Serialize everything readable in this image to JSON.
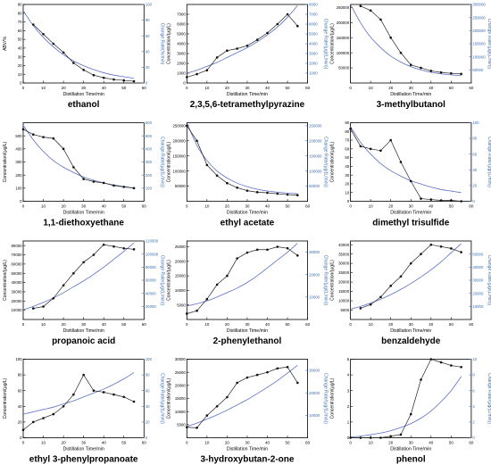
{
  "figure": {
    "shared_xlabel": "Distillation Time/min"
  },
  "chart_data": [
    {
      "type": "line",
      "name": "ethanol",
      "ylabel": "ABV/%",
      "y2label": "Change Rate(%/min)",
      "xlim": [
        0,
        60
      ],
      "ylim": [
        0,
        90
      ],
      "y2lim": [
        0,
        100
      ],
      "xticks": [
        0,
        10,
        20,
        30,
        40,
        50,
        60
      ],
      "yticks": [
        0,
        10,
        20,
        30,
        40,
        50,
        60,
        70,
        80,
        90
      ],
      "y2ticks": [
        0,
        20,
        40,
        60,
        80,
        100
      ],
      "measured": {
        "x": [
          5,
          10,
          15,
          20,
          25,
          30,
          35,
          40,
          45,
          50,
          55
        ],
        "y": [
          67,
          56,
          45,
          35,
          23,
          15,
          9,
          6,
          4,
          3,
          2
        ]
      },
      "fit": {
        "x": [
          0,
          5,
          10,
          15,
          20,
          25,
          30,
          35,
          40,
          45,
          50,
          55
        ],
        "y2": [
          92,
          73,
          58,
          46,
          36,
          28,
          22,
          17,
          13,
          10,
          8,
          6
        ]
      }
    },
    {
      "type": "line",
      "name": "2,3,5,6-tetramethylpyrazine",
      "ylabel": "Concentration/(μg/L)",
      "y2label": "Change Rate/(μg/(L/min))",
      "xlim": [
        0,
        60
      ],
      "ylim": [
        0,
        8000
      ],
      "y2lim": [
        0,
        8000
      ],
      "xticks": [
        0,
        10,
        20,
        30,
        40,
        50,
        60
      ],
      "yticks": [
        0,
        1000,
        2000,
        3000,
        4000,
        5000,
        6000,
        7000
      ],
      "y2ticks": [
        1000,
        2000,
        3000,
        4000,
        5000,
        6000,
        7000,
        8000
      ],
      "measured": {
        "x": [
          0,
          5,
          10,
          15,
          20,
          25,
          30,
          35,
          40,
          45,
          50,
          55
        ],
        "y": [
          600,
          900,
          1300,
          2600,
          3300,
          3500,
          3800,
          4400,
          5100,
          6000,
          7000,
          5800
        ]
      },
      "fit": {
        "x": [
          0,
          5,
          10,
          15,
          20,
          25,
          30,
          35,
          40,
          45,
          50,
          55
        ],
        "y2": [
          1000,
          1300,
          1700,
          2100,
          2600,
          3100,
          3600,
          4200,
          4900,
          5700,
          6700,
          7900
        ]
      }
    },
    {
      "type": "line",
      "name": "3-methylbutanol",
      "ylabel": "Concentration/(μg/L)",
      "y2label": "Change Rate/(μg/(L/min))",
      "xlim": [
        0,
        60
      ],
      "ylim": [
        0,
        260000
      ],
      "y2lim": [
        0,
        300000
      ],
      "xticks": [
        0,
        10,
        20,
        30,
        40,
        50,
        60
      ],
      "yticks": [
        50000,
        100000,
        150000,
        200000,
        250000
      ],
      "y2ticks": [
        50000,
        100000,
        150000,
        200000,
        250000,
        300000
      ],
      "measured": {
        "x": [
          5,
          10,
          15,
          20,
          25,
          30,
          35,
          40,
          45,
          50,
          55
        ],
        "y": [
          255000,
          240000,
          210000,
          150000,
          100000,
          60000,
          50000,
          40000,
          35000,
          32000,
          30000
        ]
      },
      "fit": {
        "x": [
          0,
          5,
          10,
          15,
          20,
          25,
          30,
          35,
          40,
          45,
          50,
          55
        ],
        "y2": [
          300000,
          230000,
          175000,
          135000,
          103000,
          80000,
          62000,
          50000,
          41000,
          35000,
          31000,
          28000
        ]
      }
    },
    {
      "type": "line",
      "name": "1,1-diethoxyethane",
      "ylabel": "Concentration/(μg/L)",
      "y2label": "Change Rate/(μg/(L/min))",
      "xlim": [
        0,
        60
      ],
      "ylim": [
        0,
        600
      ],
      "y2lim": [
        0,
        600
      ],
      "xticks": [
        0,
        10,
        20,
        30,
        40,
        50,
        60
      ],
      "yticks": [
        0,
        100,
        200,
        300,
        400,
        500
      ],
      "y2ticks": [
        100,
        200,
        300,
        400,
        500,
        600
      ],
      "measured": {
        "x": [
          0,
          5,
          10,
          15,
          20,
          25,
          30,
          35,
          40,
          45,
          50,
          55
        ],
        "y": [
          550,
          510,
          490,
          480,
          400,
          260,
          170,
          150,
          140,
          120,
          110,
          100
        ]
      },
      "fit": {
        "x": [
          0,
          5,
          10,
          15,
          20,
          25,
          30,
          35,
          40,
          45,
          50,
          55
        ],
        "y2": [
          580,
          470,
          380,
          310,
          260,
          220,
          185,
          160,
          140,
          125,
          112,
          102
        ]
      }
    },
    {
      "type": "line",
      "name": "ethyl acetate",
      "ylabel": "Concentration/(μg/L)",
      "y2label": "Change Rate/(μg/(L/min))",
      "xlim": [
        0,
        60
      ],
      "ylim": [
        0,
        260000
      ],
      "y2lim": [
        0,
        260000
      ],
      "xticks": [
        0,
        10,
        20,
        30,
        40,
        50,
        60
      ],
      "yticks": [
        50000,
        100000,
        150000,
        200000,
        250000
      ],
      "y2ticks": [
        50000,
        100000,
        150000,
        200000,
        250000
      ],
      "measured": {
        "x": [
          0,
          5,
          10,
          15,
          20,
          25,
          30,
          35,
          40,
          45,
          50,
          55
        ],
        "y": [
          250000,
          200000,
          120000,
          85000,
          60000,
          45000,
          35000,
          30000,
          28000,
          25000,
          22000,
          20000
        ]
      },
      "fit": {
        "x": [
          0,
          5,
          10,
          15,
          20,
          25,
          30,
          35,
          40,
          45,
          50,
          55
        ],
        "y2": [
          260000,
          185000,
          135000,
          100000,
          77000,
          60000,
          48000,
          40000,
          34000,
          30000,
          27000,
          25000
        ]
      }
    },
    {
      "type": "line",
      "name": "dimethyl trisulfide",
      "ylabel": "Concentration/(μg/L)",
      "y2label": "Change Rate/(μg/(L/min))",
      "xlim": [
        0,
        60
      ],
      "ylim": [
        0,
        90
      ],
      "y2lim": [
        0,
        100
      ],
      "xticks": [
        0,
        10,
        20,
        30,
        40,
        50,
        60
      ],
      "yticks": [
        0,
        10,
        20,
        30,
        40,
        50,
        60,
        70,
        80,
        90
      ],
      "y2ticks": [
        0,
        20,
        40,
        60,
        80,
        100
      ],
      "measured": {
        "x": [
          0,
          5,
          10,
          15,
          20,
          25,
          30,
          35,
          40,
          45,
          50,
          55
        ],
        "y": [
          83,
          63,
          60,
          58,
          70,
          45,
          23,
          3,
          2,
          1,
          1,
          0
        ]
      },
      "fit": {
        "x": [
          0,
          5,
          10,
          15,
          20,
          25,
          30,
          35,
          40,
          45,
          50,
          55
        ],
        "y2": [
          95,
          75,
          60,
          48,
          39,
          32,
          26,
          22,
          18,
          15,
          13,
          11
        ]
      }
    },
    {
      "type": "line",
      "name": "propanoic acid",
      "ylabel": "Concentration/(μg/L)",
      "y2label": "Change Rate/(μg/(L/min))",
      "xlim": [
        0,
        60
      ],
      "ylim": [
        0,
        85000
      ],
      "y2lim": [
        0,
        120000
      ],
      "xticks": [
        0,
        10,
        20,
        30,
        40,
        50,
        60
      ],
      "yticks": [
        10000,
        20000,
        30000,
        40000,
        50000,
        60000,
        70000,
        80000
      ],
      "y2ticks": [
        20000,
        40000,
        60000,
        80000,
        100000,
        120000
      ],
      "measured": {
        "x": [
          5,
          10,
          15,
          20,
          25,
          30,
          35,
          40,
          45,
          50,
          55
        ],
        "y": [
          12000,
          14000,
          23000,
          37000,
          50000,
          62000,
          70000,
          81000,
          79000,
          77000,
          76000
        ]
      },
      "fit": {
        "x": [
          0,
          5,
          10,
          15,
          20,
          25,
          30,
          35,
          40,
          45,
          50,
          55
        ],
        "y2": [
          15000,
          20000,
          26000,
          33000,
          41000,
          50000,
          59000,
          69000,
          80000,
          92000,
          104000,
          117000
        ]
      }
    },
    {
      "type": "line",
      "name": "2-phenylethanol",
      "ylabel": "Concentration/(μg/L)",
      "y2label": "Change Rate/(μg/(L/min))",
      "xlim": [
        0,
        60
      ],
      "ylim": [
        0,
        27000
      ],
      "y2lim": [
        0,
        35000
      ],
      "xticks": [
        0,
        10,
        20,
        30,
        40,
        50,
        60
      ],
      "yticks": [
        5000,
        10000,
        15000,
        20000,
        25000
      ],
      "y2ticks": [
        10000,
        20000,
        30000
      ],
      "measured": {
        "x": [
          0,
          5,
          10,
          15,
          20,
          25,
          30,
          35,
          40,
          45,
          50,
          55
        ],
        "y": [
          2000,
          3000,
          7000,
          12000,
          15000,
          21000,
          23000,
          24000,
          24000,
          25000,
          24500,
          22000
        ]
      },
      "fit": {
        "x": [
          0,
          5,
          10,
          15,
          20,
          25,
          30,
          35,
          40,
          45,
          50,
          55
        ],
        "y2": [
          6000,
          7000,
          8300,
          10000,
          12000,
          14000,
          16500,
          19500,
          23000,
          26500,
          30000,
          34000
        ]
      }
    },
    {
      "type": "line",
      "name": "benzaldehyde",
      "ylabel": "Concentration/(μg/L)",
      "y2label": "Change Rate/(μg/(L/min))",
      "xlim": [
        0,
        60
      ],
      "ylim": [
        0,
        42000
      ],
      "y2lim": [
        0,
        60000
      ],
      "xticks": [
        0,
        10,
        20,
        30,
        40,
        50,
        60
      ],
      "yticks": [
        5000,
        10000,
        15000,
        20000,
        25000,
        30000,
        35000,
        40000
      ],
      "y2ticks": [
        10000,
        20000,
        30000,
        40000,
        50000
      ],
      "measured": {
        "x": [
          5,
          10,
          15,
          20,
          25,
          30,
          35,
          40,
          45,
          50,
          55
        ],
        "y": [
          6000,
          8000,
          12000,
          18000,
          23000,
          30000,
          35000,
          40000,
          39000,
          38000,
          36000
        ]
      },
      "fit": {
        "x": [
          0,
          5,
          10,
          15,
          20,
          25,
          30,
          35,
          40,
          45,
          50,
          55
        ],
        "y2": [
          8000,
          10000,
          12500,
          15500,
          19000,
          23000,
          27500,
          32500,
          38000,
          44000,
          51000,
          58000
        ]
      }
    },
    {
      "type": "line",
      "name": "ethyl 3-phenylpropanoate",
      "ylabel": "Concentration/(μg/L)",
      "y2label": "Change Rate/(μg/(L/min))",
      "xlim": [
        0,
        60
      ],
      "ylim": [
        0,
        100
      ],
      "y2lim": [
        0,
        100
      ],
      "xticks": [
        0,
        10,
        20,
        30,
        40,
        50,
        60
      ],
      "yticks": [
        0,
        20,
        40,
        60,
        80,
        100
      ],
      "y2ticks": [
        0,
        20,
        40,
        60,
        80,
        100
      ],
      "measured": {
        "x": [
          0,
          5,
          10,
          15,
          20,
          25,
          30,
          35,
          40,
          45,
          50,
          55
        ],
        "y": [
          10,
          20,
          25,
          30,
          40,
          55,
          80,
          60,
          58,
          55,
          52,
          46
        ]
      },
      "fit": {
        "x": [
          0,
          5,
          10,
          15,
          20,
          25,
          30,
          35,
          40,
          45,
          50,
          55
        ],
        "y2": [
          30,
          33,
          36,
          39,
          43,
          47,
          52,
          57,
          62,
          68,
          75,
          83
        ]
      }
    },
    {
      "type": "line",
      "name": "3-hydroxybutan-2-one",
      "ylabel": "Concentration/(μg/L)",
      "y2label": "Change Rate/(μg/(L/min))",
      "xlim": [
        0,
        60
      ],
      "ylim": [
        0,
        30000
      ],
      "y2lim": [
        0,
        35000
      ],
      "xticks": [
        0,
        10,
        20,
        30,
        40,
        50,
        60
      ],
      "yticks": [
        5000,
        10000,
        15000,
        20000,
        25000,
        30000
      ],
      "y2ticks": [
        10000,
        20000,
        30000
      ],
      "measured": {
        "x": [
          0,
          5,
          10,
          15,
          20,
          25,
          30,
          35,
          40,
          45,
          50,
          55
        ],
        "y": [
          4000,
          3800,
          8500,
          12000,
          15500,
          21000,
          23000,
          24000,
          25000,
          26500,
          27000,
          21000
        ]
      },
      "fit": {
        "x": [
          0,
          5,
          10,
          15,
          20,
          25,
          30,
          35,
          40,
          45,
          50,
          55
        ],
        "y2": [
          5000,
          6500,
          8300,
          10200,
          12300,
          14600,
          17000,
          19700,
          22500,
          25500,
          28800,
          32300
        ]
      }
    },
    {
      "type": "line",
      "name": "phenol",
      "ylabel": "Concentration/(μg/L)",
      "y2label": "Change Rate/(μg/(L/min))",
      "xlim": [
        0,
        60
      ],
      "ylim": [
        0,
        5
      ],
      "y2lim": [
        0,
        10
      ],
      "xticks": [
        0,
        10,
        20,
        30,
        40,
        50,
        60
      ],
      "yticks": [
        0,
        1,
        2,
        3,
        4,
        5
      ],
      "y2ticks": [
        0,
        2,
        4,
        6,
        8,
        10
      ],
      "measured": {
        "x": [
          0,
          5,
          10,
          15,
          20,
          25,
          30,
          35,
          40,
          45,
          50,
          55
        ],
        "y": [
          0,
          0,
          0,
          0,
          0.1,
          0.2,
          1.5,
          3.7,
          5,
          4.8,
          4.6,
          4.5
        ]
      },
      "fit": {
        "x": [
          0,
          5,
          10,
          15,
          20,
          25,
          30,
          35,
          40,
          45,
          50,
          55
        ],
        "y2": [
          0.1,
          0.2,
          0.4,
          0.6,
          0.9,
          1.3,
          1.8,
          2.5,
          3.4,
          4.6,
          6.0,
          7.8
        ]
      }
    }
  ]
}
